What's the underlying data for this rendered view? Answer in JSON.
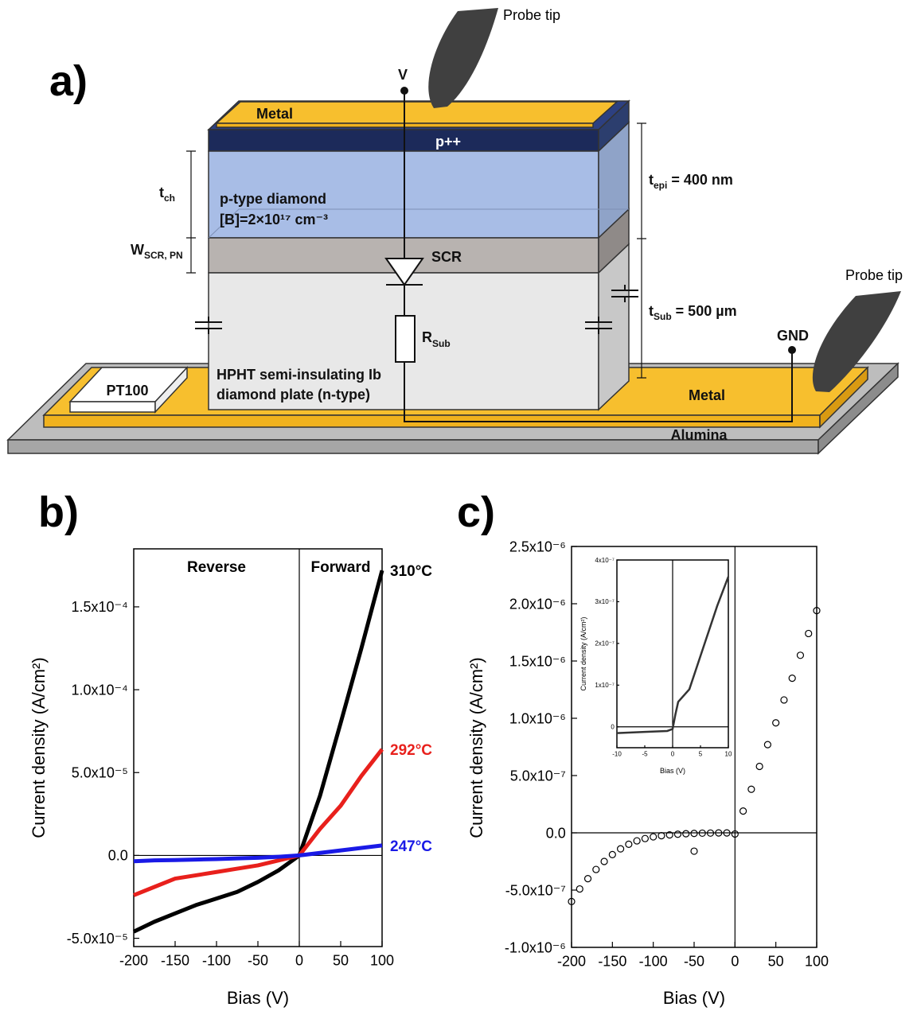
{
  "panels": [
    "a)",
    "b)",
    "c)"
  ],
  "diagram": {
    "probe_tip_1": "Probe tip",
    "probe_tip_2": "Probe tip",
    "v": "V",
    "gnd": "GND",
    "metal_top": "Metal",
    "p_plus": "p++",
    "t_ch": {
      "base": "t",
      "sub": "ch"
    },
    "p_type": "p-type diamond",
    "doping": "[B]=2×10¹⁷ cm⁻³",
    "w_scr": {
      "base": "W",
      "sub": "SCR, PN"
    },
    "scr": "SCR",
    "t_epi": {
      "base": "t",
      "sub": "epi",
      "rest": " = 400 nm"
    },
    "t_sub": {
      "base": "t",
      "sub": "Sub",
      "rest": " = 500 µm"
    },
    "r_sub": {
      "base": "R",
      "sub": "Sub"
    },
    "pt100": "PT100",
    "substrate": [
      "HPHT semi-insulating Ib",
      "diamond plate (n-type)"
    ],
    "metal_bottom": "Metal",
    "alumina": "Alumina"
  },
  "chart_data": [
    {
      "type": "line",
      "xlabel": "Bias (V)",
      "ylabel": "Current density (A/cm²)",
      "annotations": [
        "Reverse",
        "Forward"
      ],
      "x": [
        -200,
        -175,
        -150,
        -125,
        -100,
        -75,
        -50,
        -25,
        0,
        25,
        50,
        75,
        100
      ],
      "series": [
        {
          "name": "310°C",
          "color": "#000000",
          "values": [
            -4.6e-05,
            -4e-05,
            -3.5e-05,
            -3e-05,
            -2.6e-05,
            -2.2e-05,
            -1.6e-05,
            -9e-06,
            0,
            3.6e-05,
            8e-05,
            0.000125,
            0.000172
          ]
        },
        {
          "name": "292°C",
          "color": "#e8201c",
          "values": [
            -2.4e-05,
            -1.9e-05,
            -1.4e-05,
            -1.2e-05,
            -1e-05,
            -8e-06,
            -6e-06,
            -3e-06,
            0,
            1.6e-05,
            3e-05,
            4.8e-05,
            6.4e-05
          ]
        },
        {
          "name": "247°C",
          "color": "#1a1ae6",
          "values": [
            -3.5e-06,
            -3e-06,
            -2.8e-06,
            -2.5e-06,
            -2.2e-06,
            -1.8e-06,
            -1.4e-06,
            -8e-07,
            0,
            1.5e-06,
            3e-06,
            4.5e-06,
            6e-06
          ]
        }
      ],
      "xlim": [
        -200,
        100
      ],
      "xticks": [
        -200,
        -150,
        -100,
        -50,
        0,
        50,
        100
      ],
      "ylim": [
        -5.5e-05,
        0.000185
      ],
      "yticks": [
        {
          "value": -5e-05,
          "label": "-5.0x10⁻⁵"
        },
        {
          "value": 0,
          "label": "0.0"
        },
        {
          "value": 5e-05,
          "label": "5.0x10⁻⁵"
        },
        {
          "value": 0.0001,
          "label": "1.0x10⁻⁴"
        },
        {
          "value": 0.00015,
          "label": "1.5x10⁻⁴"
        }
      ]
    },
    {
      "type": "scatter",
      "xlabel": "Bias (V)",
      "ylabel": "Current density (A/cm²)",
      "x": [
        -200,
        -190,
        -180,
        -170,
        -160,
        -150,
        -140,
        -130,
        -120,
        -110,
        -100,
        -90,
        -80,
        -70,
        -60,
        -50,
        -40,
        -30,
        -20,
        -10,
        0,
        10,
        20,
        30,
        40,
        50,
        60,
        70,
        80,
        90,
        100,
        -50
      ],
      "series": [
        {
          "color": "#000000",
          "values": [
            -6e-07,
            -4.9e-07,
            -4e-07,
            -3.2e-07,
            -2.5e-07,
            -1.9e-07,
            -1.4e-07,
            -1e-07,
            -7e-08,
            -5e-08,
            -3.5e-08,
            -2.5e-08,
            -1.8e-08,
            -1.2e-08,
            -8e-09,
            -5e-09,
            -3e-09,
            -2e-09,
            -1e-09,
            -1e-09,
            -1e-08,
            1.9e-07,
            3.8e-07,
            5.8e-07,
            7.7e-07,
            9.6e-07,
            1.16e-06,
            1.35e-06,
            1.55e-06,
            1.74e-06,
            1.94e-06,
            -1.6e-07
          ]
        }
      ],
      "xlim": [
        -200,
        100
      ],
      "xticks": [
        -200,
        -150,
        -100,
        -50,
        0,
        50,
        100
      ],
      "ylim": [
        -1e-06,
        2.5e-06
      ],
      "yticks": [
        {
          "value": -1e-06,
          "label": "-1.0x10⁻⁶"
        },
        {
          "value": -5e-07,
          "label": "-5.0x10⁻⁷"
        },
        {
          "value": 0,
          "label": "0.0"
        },
        {
          "value": 5e-07,
          "label": "5.0x10⁻⁷"
        },
        {
          "value": 1e-06,
          "label": "1.0x10⁻⁶"
        },
        {
          "value": 1.5e-06,
          "label": "1.5x10⁻⁶"
        },
        {
          "value": 2e-06,
          "label": "2.0x10⁻⁶"
        },
        {
          "value": 2.5e-06,
          "label": "2.5x10⁻⁶"
        }
      ]
    },
    {
      "type": "line",
      "xlabel": "Bias (V)",
      "ylabel": "Current density (A/cm²)",
      "x": [
        -10,
        -5,
        -1,
        0,
        0.5,
        1,
        2,
        3,
        4,
        6,
        8,
        10
      ],
      "series": [
        {
          "color": "#333333",
          "values": [
            -1.5e-08,
            -1.2e-08,
            -1e-08,
            -5e-09,
            3e-08,
            6e-08,
            7.5e-08,
            9e-08,
            1.3e-07,
            2.1e-07,
            2.9e-07,
            3.6e-07
          ]
        }
      ],
      "xlim": [
        -10,
        10
      ],
      "xticks": [
        -10,
        -5,
        0,
        5,
        10
      ],
      "ylim": [
        -5e-08,
        4e-07
      ],
      "yticks": [
        0,
        {
          "value": 1e-07,
          "label": "1x10⁻⁷"
        },
        {
          "value": 2e-07,
          "label": "2x10⁻⁷"
        },
        {
          "value": 3e-07,
          "label": "3x10⁻⁷"
        },
        {
          "value": 4e-07,
          "label": "4x10⁻⁷"
        }
      ]
    }
  ]
}
